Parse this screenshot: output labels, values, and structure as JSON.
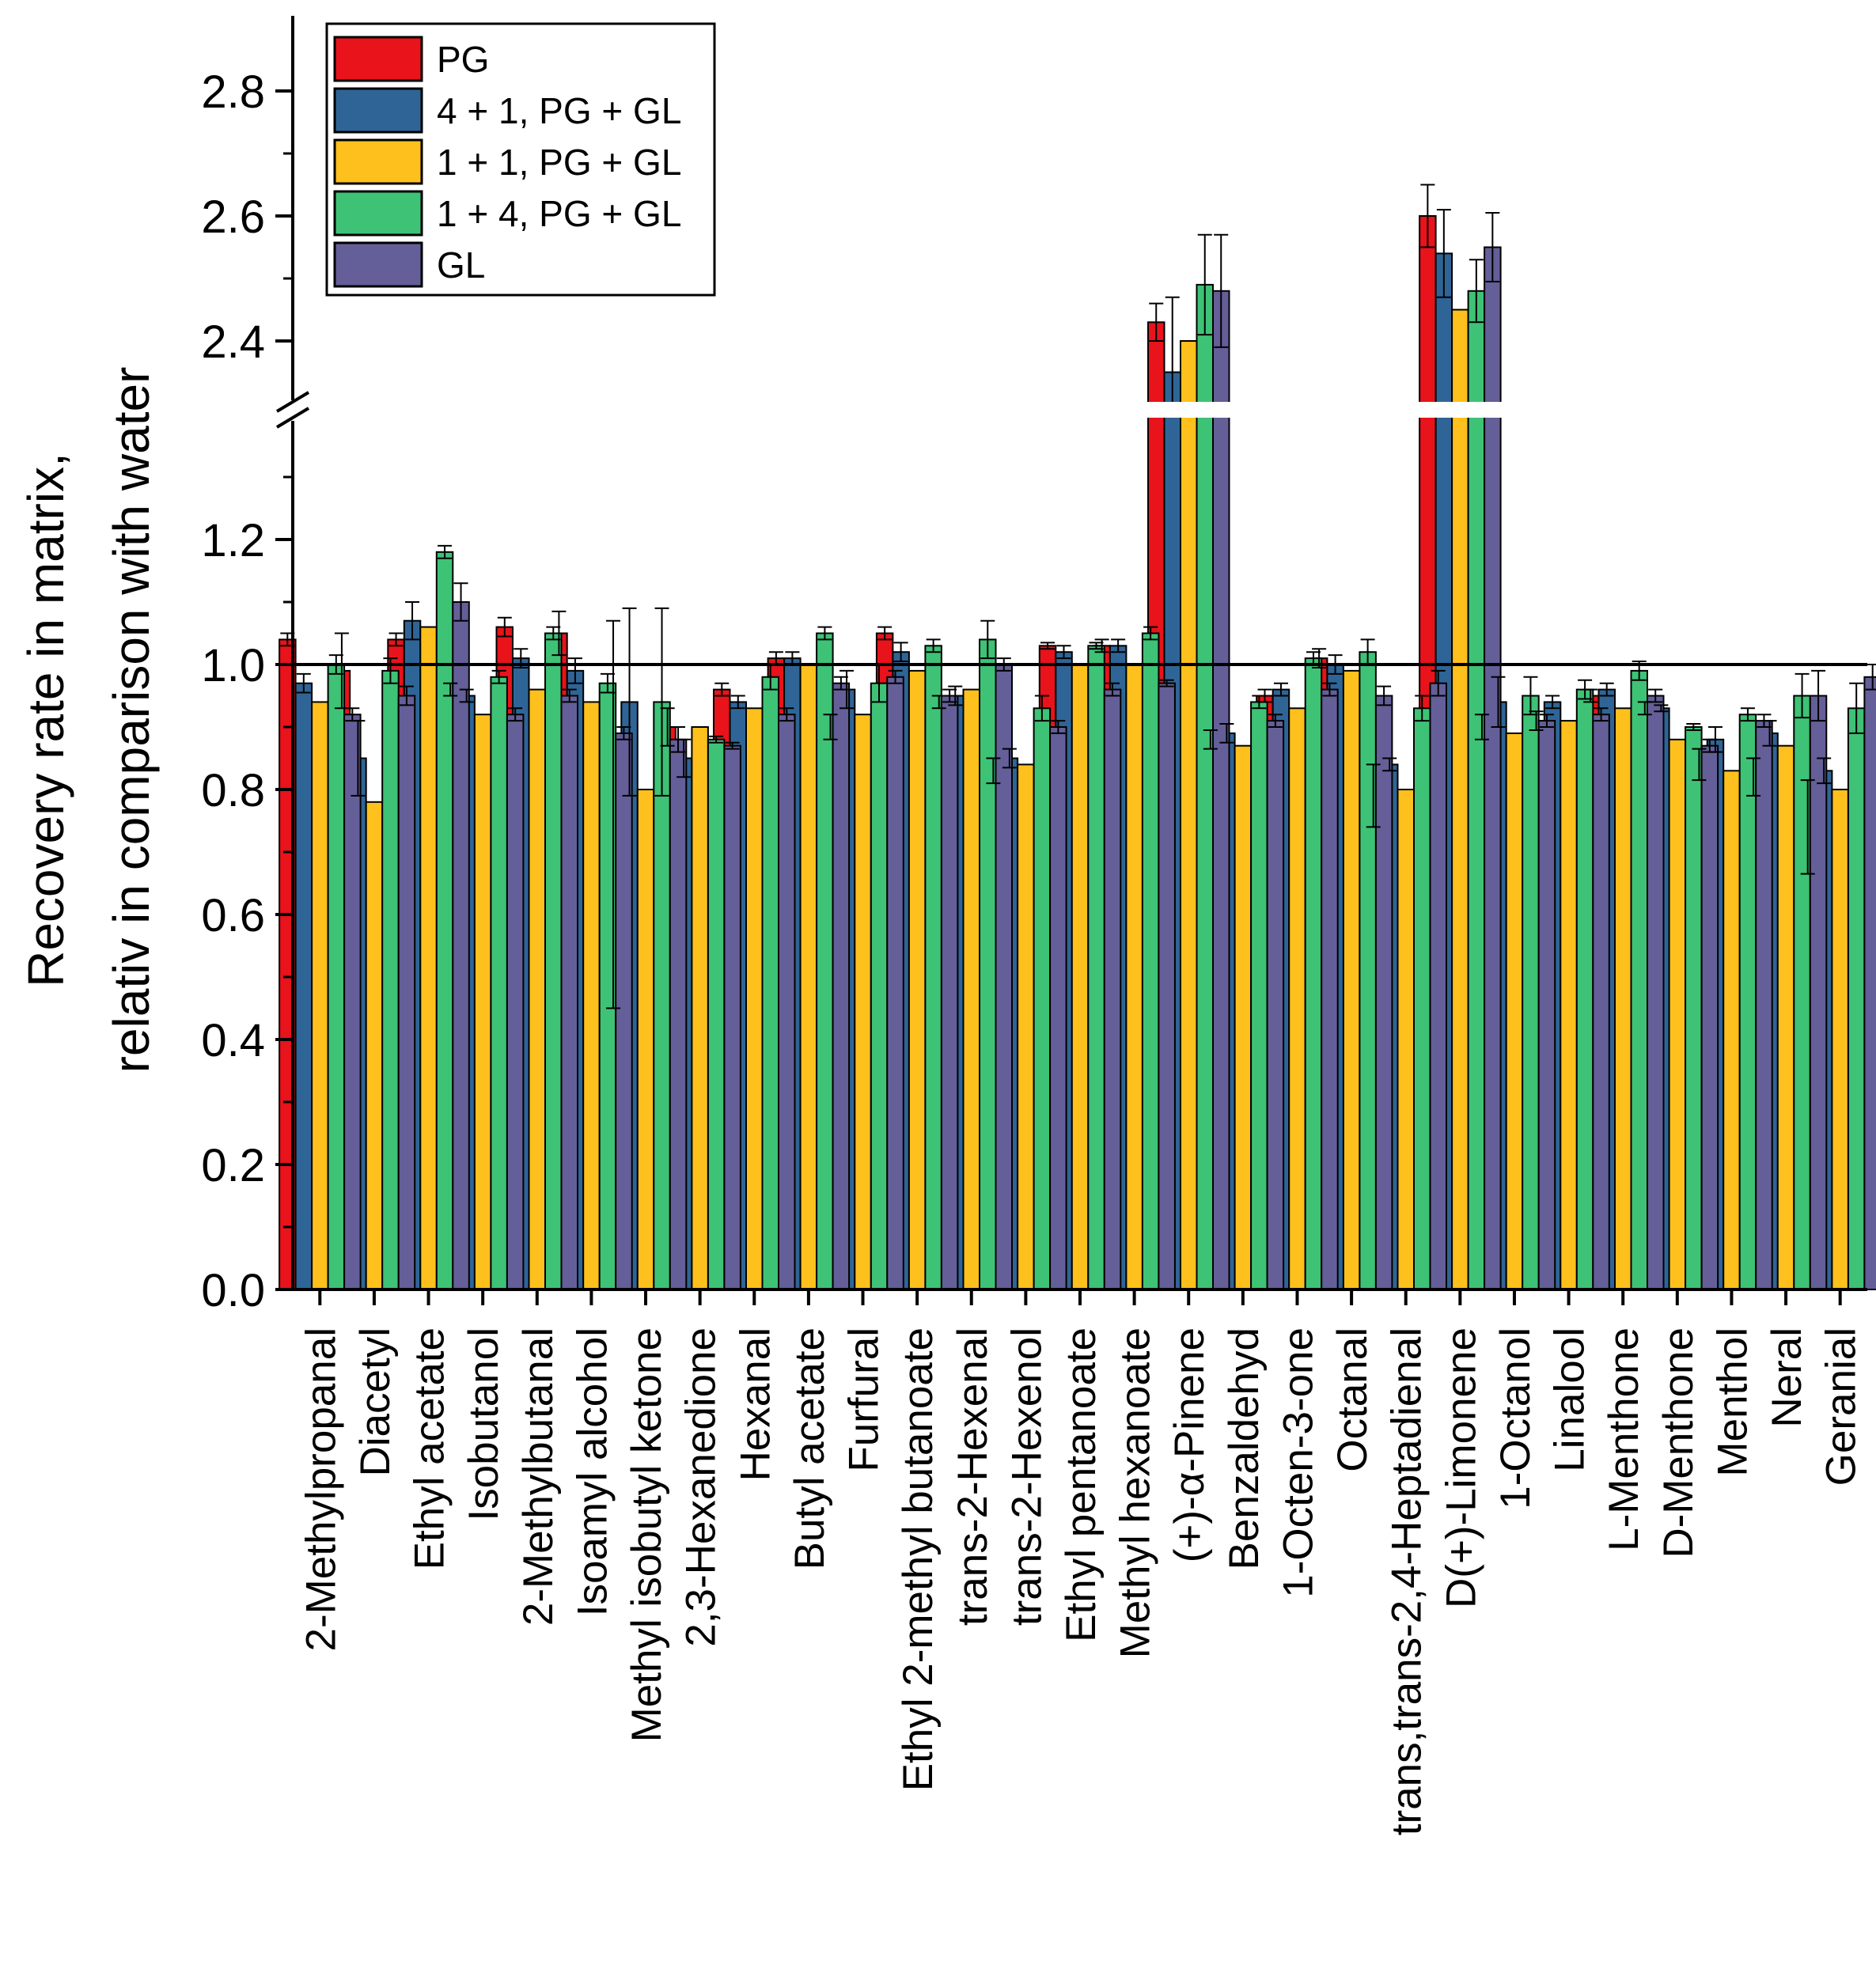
{
  "chart_data": {
    "type": "bar",
    "title": "",
    "xlabel": "",
    "ylabel_line1": "Recovery rate in matrix,",
    "ylabel_line2": "relativ in comparison with water",
    "reference_line": 1.0,
    "axis_break": {
      "from": 1.36,
      "to": 2.3
    },
    "ylim_lower": [
      0,
      1.4
    ],
    "ylim_upper": [
      2.3,
      2.9
    ],
    "yticks_lower": [
      "0.0",
      "0.2",
      "0.4",
      "0.6",
      "0.8",
      "1.0",
      "1.2"
    ],
    "yticks_upper": [
      "2.4",
      "2.6",
      "2.8"
    ],
    "legend_position": "top-left",
    "categories": [
      "2-Methylpropanal",
      "Diacetyl",
      "Ethyl acetate",
      "Isobutanol",
      "2-Methylbutanal",
      "Isoamyl alcohol",
      "Methyl isobutyl ketone",
      "2,3-Hexanedione",
      "Hexanal",
      "Butyl acetate",
      "Furfural",
      "Ethyl 2-methyl butanoate",
      "trans-2-Hexenal",
      "trans-2-Hexenol",
      "Ethyl pentanoate",
      "Methyl hexanoate",
      "(+)-α-Pinene",
      "Benzaldehyd",
      "1-Octen-3-one",
      "Octanal",
      "trans,trans-2,4-Heptadienal",
      "D(+)-Limonene",
      "1-Octanol",
      "Linalool",
      "L-Menthone",
      "D-Menthone",
      "Menthol",
      "Neral",
      "Geranial"
    ],
    "series": [
      {
        "name": "PG",
        "color": "#e8131b",
        "values": [
          1.04,
          0.99,
          1.04,
          0.96,
          1.06,
          1.05,
          0.76,
          0.9,
          0.96,
          1.01,
          0.9,
          1.05,
          0.94,
          0.83,
          1.03,
          1.03,
          2.43,
          0.88,
          0.95,
          1.01,
          0.79,
          2.6,
          0.9,
          0.91,
          0.95,
          0.93,
          0.84,
          0.82,
          0.74
        ],
        "errors": [
          0.01,
          0.06,
          0.01,
          0.01,
          0.015,
          0.035,
          0.31,
          0.03,
          0.01,
          0.01,
          0.02,
          0.01,
          0.01,
          0.02,
          0.005,
          0.01,
          0.03,
          0.015,
          0.01,
          0.015,
          0.05,
          0.05,
          0.02,
          0.015,
          0.01,
          0.01,
          0.025,
          0.03,
          0.075
        ]
      },
      {
        "name": "4 + 1, PG + GL",
        "color": "#2f6596",
        "values": [
          0.97,
          0.85,
          1.07,
          0.95,
          1.01,
          0.99,
          0.94,
          0.85,
          0.94,
          1.01,
          0.96,
          1.02,
          0.95,
          0.85,
          1.02,
          1.03,
          2.35,
          0.89,
          0.96,
          1.0,
          0.84,
          2.54,
          0.94,
          0.94,
          0.96,
          0.93,
          0.88,
          0.89,
          0.83
        ],
        "errors": [
          0.015,
          0.06,
          0.03,
          0.01,
          0.015,
          0.02,
          0.15,
          0.03,
          0.01,
          0.01,
          0.03,
          0.015,
          0.015,
          0.015,
          0.01,
          0.01,
          0.12,
          0.015,
          0.01,
          0.015,
          0.01,
          0.07,
          0.04,
          0.01,
          0.01,
          0.005,
          0.02,
          0.02,
          0.02
        ]
      },
      {
        "name": "1 + 1, PG + GL",
        "color": "#fdc01c",
        "values": [
          0.94,
          0.78,
          1.06,
          0.92,
          0.96,
          0.94,
          0.8,
          0.9,
          0.93,
          1.0,
          0.92,
          0.99,
          0.96,
          0.84,
          1.0,
          1.0,
          2.4,
          0.87,
          0.93,
          0.99,
          0.8,
          2.45,
          0.89,
          0.91,
          0.93,
          0.88,
          0.83,
          0.87,
          0.8
        ]
      },
      {
        "name": "1 + 4, PG + GL",
        "color": "#3ec276",
        "values": [
          1.0,
          0.99,
          1.18,
          0.98,
          1.05,
          0.97,
          0.94,
          0.88,
          0.98,
          1.05,
          0.97,
          1.03,
          1.04,
          0.93,
          1.03,
          1.05,
          2.49,
          0.94,
          1.01,
          1.02,
          0.93,
          2.48,
          0.95,
          0.96,
          0.99,
          0.9,
          0.92,
          0.95,
          0.93
        ],
        "errors": [
          0.015,
          0.02,
          0.01,
          0.01,
          0.01,
          0.015,
          0.15,
          0.005,
          0.02,
          0.01,
          0.03,
          0.01,
          0.03,
          0.02,
          0.005,
          0.01,
          0.08,
          0.01,
          0.01,
          0.02,
          0.02,
          0.05,
          0.03,
          0.015,
          0.015,
          0.005,
          0.01,
          0.035,
          0.04
        ]
      },
      {
        "name": "GL",
        "color": "#645f98",
        "values": [
          0.92,
          0.95,
          1.1,
          0.92,
          0.95,
          0.89,
          0.88,
          0.87,
          0.92,
          0.97,
          0.98,
          0.95,
          1.0,
          0.9,
          0.96,
          0.97,
          2.48,
          0.91,
          0.96,
          0.95,
          0.97,
          2.55,
          0.91,
          0.92,
          0.95,
          0.87,
          0.91,
          0.95,
          0.98
        ],
        "errors": [
          0.01,
          0.015,
          0.03,
          0.01,
          0.01,
          0.01,
          0.02,
          0.005,
          0.01,
          0.01,
          0.01,
          0.01,
          0.01,
          0.01,
          0.01,
          0.005,
          0.09,
          0.01,
          0.01,
          0.015,
          0.02,
          0.055,
          0.01,
          0.01,
          0.01,
          0.01,
          0.01,
          0.04,
          0.02
        ]
      }
    ]
  }
}
